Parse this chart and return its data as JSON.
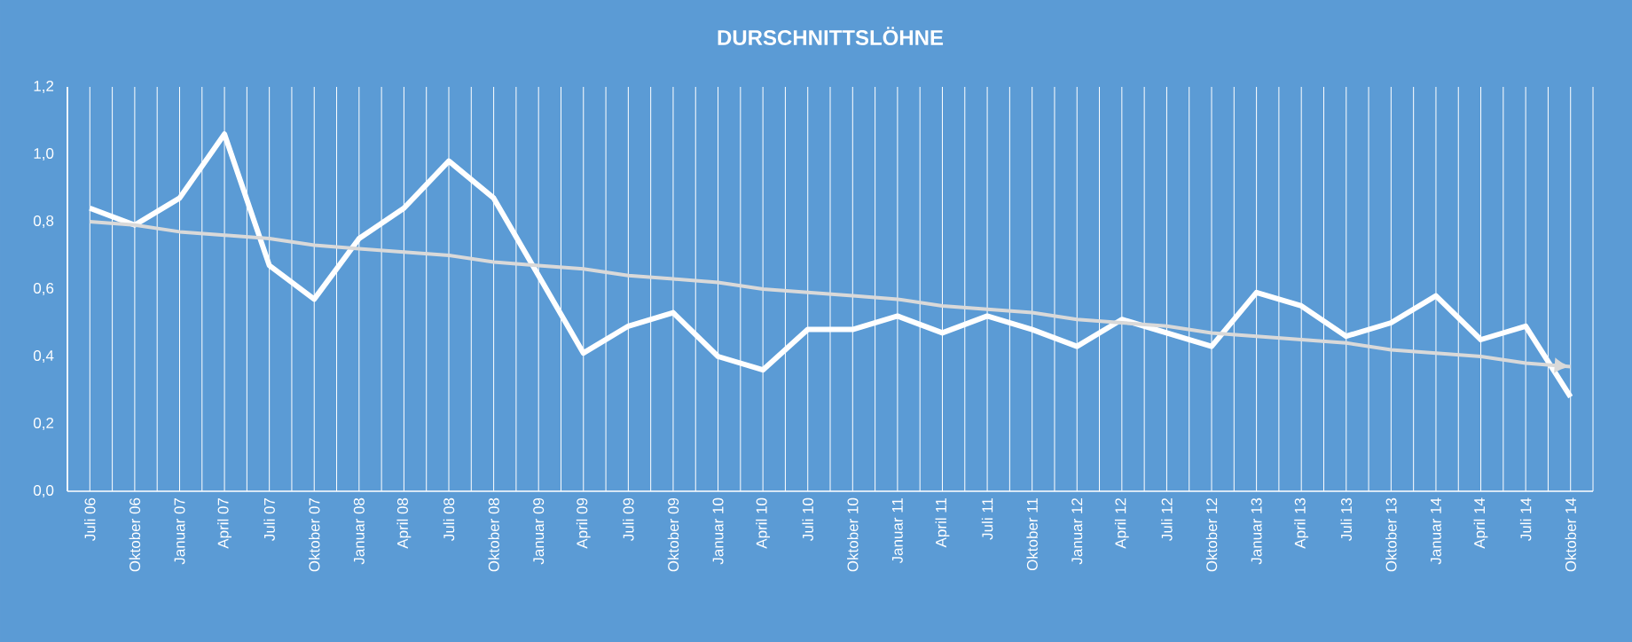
{
  "chart_data": {
    "type": "line",
    "title": "DURSCHNITTSLÖHNE",
    "categories": [
      "Juli 06",
      "Oktober 06",
      "Januar 07",
      "April 07",
      "Juli 07",
      "Oktober 07",
      "Januar 08",
      "April 08",
      "Juli 08",
      "Oktober 08",
      "Januar 09",
      "April 09",
      "Juli 09",
      "Oktober 09",
      "Januar 10",
      "April 10",
      "Juli 10",
      "Oktober 10",
      "Januar 11",
      "April 11",
      "Juli 11",
      "Oktober 11",
      "Januar 12",
      "April 12",
      "Juli 12",
      "Oktober 12",
      "Januar 13",
      "April 13",
      "Juli 13",
      "Oktober 13",
      "Januar 14",
      "April 14",
      "Juli 14",
      "Oktober 14"
    ],
    "series": [
      {
        "color": "#ffffff",
        "values": [
          0.84,
          0.79,
          0.87,
          1.06,
          0.67,
          0.57,
          0.75,
          0.84,
          0.98,
          0.87,
          0.64,
          0.41,
          0.49,
          0.53,
          0.4,
          0.36,
          0.48,
          0.48,
          0.52,
          0.47,
          0.52,
          0.48,
          0.43,
          0.51,
          0.47,
          0.43,
          0.59,
          0.55,
          0.46,
          0.5,
          0.58,
          0.45,
          0.49,
          0.28
        ]
      },
      {
        "type": "line",
        "color": "#d9d9d9",
        "values": [
          0.8,
          0.79,
          0.77,
          0.76,
          0.75,
          0.73,
          0.72,
          0.71,
          0.7,
          0.68,
          0.67,
          0.66,
          0.64,
          0.63,
          0.62,
          0.6,
          0.59,
          0.58,
          0.57,
          0.55,
          0.54,
          0.53,
          0.51,
          0.5,
          0.49,
          0.47,
          0.46,
          0.45,
          0.44,
          0.42,
          0.41,
          0.4,
          0.38,
          0.37
        ]
      }
    ],
    "ylim": [
      0,
      1.2
    ],
    "yticks": [
      {
        "value": 0,
        "label": "0,0"
      },
      {
        "value": 0.2,
        "label": "0,2"
      },
      {
        "value": 0.4,
        "label": "0,4"
      },
      {
        "value": 0.6,
        "label": "0,6"
      },
      {
        "value": 0.8,
        "label": "0,8"
      },
      {
        "value": 1.0,
        "label": "1,0"
      },
      {
        "value": 1.2,
        "label": "1,2"
      }
    ],
    "grid": "x",
    "marker": "none",
    "line_style": "solid"
  }
}
